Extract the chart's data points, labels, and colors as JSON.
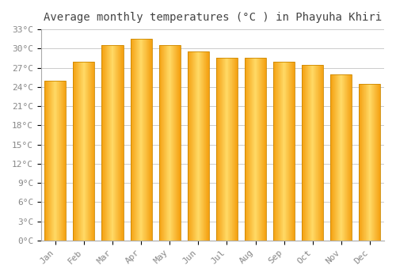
{
  "title": "Average monthly temperatures (°C ) in Phayuha Khiri",
  "months": [
    "Jan",
    "Feb",
    "Mar",
    "Apr",
    "May",
    "Jun",
    "Jul",
    "Aug",
    "Sep",
    "Oct",
    "Nov",
    "Dec"
  ],
  "values": [
    25.0,
    28.0,
    30.5,
    31.5,
    30.5,
    29.5,
    28.5,
    28.5,
    28.0,
    27.5,
    26.0,
    24.5
  ],
  "bar_color_light": "#FFD966",
  "bar_color_dark": "#F4A011",
  "bar_edge_color": "#CC8800",
  "ylim": [
    0,
    33
  ],
  "ytick_step": 3,
  "background_color": "#FFFFFF",
  "grid_color": "#CCCCCC",
  "title_fontsize": 10,
  "tick_fontsize": 8,
  "tick_label_color": "#888888",
  "font_family": "monospace"
}
